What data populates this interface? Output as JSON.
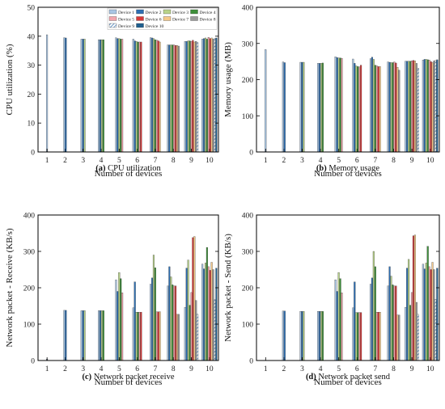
{
  "legend": {
    "entries": [
      "Device 1",
      "Device 2",
      "Device 3",
      "Device 4",
      "Device 5",
      "Device 6",
      "Device 7",
      "Device 8",
      "Device 9",
      "Device 10"
    ]
  },
  "colors": {
    "series": [
      "#a9c6e4",
      "#2d6fb3",
      "#b9d38a",
      "#3e8f3a",
      "#f2a6ad",
      "#d73838",
      "#f5c98a",
      "#9a9a9a",
      "#9b85be",
      "#1f5f8f"
    ]
  },
  "chart_data": [
    {
      "type": "bar",
      "panel_letter": "(a)",
      "caption": "CPU utilization",
      "xlabel": "Number of devices",
      "ylabel": "CPU utilization (%)",
      "ylim": [
        0,
        50
      ],
      "yticks": [
        0,
        10,
        20,
        30,
        40,
        50
      ],
      "categories": [
        "1",
        "2",
        "3",
        "4",
        "5",
        "6",
        "7",
        "8",
        "9",
        "10"
      ],
      "legend_position": "top-right",
      "groups": [
        [
          40.5
        ],
        [
          39.5,
          39.4
        ],
        [
          39.0,
          39.0,
          39.0
        ],
        [
          38.8,
          38.8,
          38.8,
          38.8
        ],
        [
          39.5,
          39.2,
          39.2,
          39.0,
          39.0
        ],
        [
          39.0,
          38.4,
          38.2,
          38.0,
          38.0,
          38.0
        ],
        [
          39.5,
          39.4,
          39.2,
          38.8,
          38.6,
          38.4,
          38.0
        ],
        [
          37.0,
          37.0,
          37.0,
          37.0,
          37.0,
          36.8,
          36.8,
          36.6
        ],
        [
          38.2,
          38.2,
          38.4,
          38.4,
          38.2,
          38.6,
          38.0,
          38.2,
          37.8
        ],
        [
          39.0,
          39.2,
          39.4,
          39.0,
          39.6,
          39.2,
          39.4,
          39.0,
          39.2,
          39.4
        ]
      ]
    },
    {
      "type": "bar",
      "panel_letter": "(b)",
      "caption": "Memory usage",
      "xlabel": "Number of devices",
      "ylabel": "Memory usage (MB)",
      "ylim": [
        0,
        400
      ],
      "yticks": [
        0,
        100,
        200,
        300,
        400
      ],
      "categories": [
        "1",
        "2",
        "3",
        "4",
        "5",
        "6",
        "7",
        "8",
        "9",
        "10"
      ],
      "groups": [
        [
          283
        ],
        [
          249,
          247
        ],
        [
          248,
          248,
          248
        ],
        [
          245,
          245,
          245,
          246
        ],
        [
          263,
          261,
          260,
          260,
          259
        ],
        [
          257,
          245,
          238,
          236,
          235,
          240
        ],
        [
          258,
          262,
          256,
          240,
          238,
          236,
          236
        ],
        [
          249,
          248,
          247,
          247,
          249,
          246,
          234,
          226
        ],
        [
          251,
          251,
          251,
          251,
          252,
          253,
          252,
          245,
          232
        ],
        [
          254,
          256,
          256,
          255,
          254,
          250,
          247,
          252,
          253,
          255
        ]
      ]
    },
    {
      "type": "bar",
      "panel_letter": "(c)",
      "caption": "Network packet receive",
      "xlabel": "Number of devices",
      "ylabel": "Network packet - Receive (KB/s)",
      "ylim": [
        0,
        400
      ],
      "yticks": [
        0,
        100,
        200,
        300,
        400
      ],
      "categories": [
        "1",
        "2",
        "3",
        "4",
        "5",
        "6",
        "7",
        "8",
        "9",
        "10"
      ],
      "groups": [
        [
          4
        ],
        [
          138,
          138
        ],
        [
          137,
          137,
          137
        ],
        [
          137,
          137,
          137,
          137
        ],
        [
          222,
          190,
          242,
          225,
          186
        ],
        [
          145,
          216,
          133,
          133,
          133,
          133
        ],
        [
          210,
          227,
          290,
          255,
          134,
          134,
          134
        ],
        [
          205,
          258,
          230,
          208,
          205,
          205,
          127,
          127
        ],
        [
          146,
          254,
          276,
          152,
          187,
          338,
          341,
          165,
          127
        ],
        [
          265,
          252,
          268,
          311,
          258,
          248,
          270,
          250,
          167,
          254
        ]
      ]
    },
    {
      "type": "bar",
      "panel_letter": "(d)",
      "caption": "Network packet send",
      "xlabel": "Number of devices",
      "ylabel": "Network packet - Send (KB/s)",
      "ylim": [
        0,
        400
      ],
      "yticks": [
        0,
        100,
        200,
        300,
        400
      ],
      "categories": [
        "1",
        "2",
        "3",
        "4",
        "5",
        "6",
        "7",
        "8",
        "9",
        "10"
      ],
      "groups": [
        [
          0
        ],
        [
          136,
          136
        ],
        [
          135,
          135,
          135
        ],
        [
          135,
          135,
          135,
          135
        ],
        [
          222,
          190,
          242,
          225,
          186
        ],
        [
          145,
          216,
          132,
          132,
          132,
          132
        ],
        [
          210,
          227,
          300,
          258,
          133,
          133,
          133
        ],
        [
          205,
          258,
          232,
          208,
          205,
          205,
          125,
          125
        ],
        [
          146,
          254,
          278,
          152,
          187,
          343,
          345,
          160,
          127
        ],
        [
          265,
          252,
          268,
          314,
          258,
          250,
          270,
          250,
          168,
          254
        ]
      ]
    }
  ]
}
